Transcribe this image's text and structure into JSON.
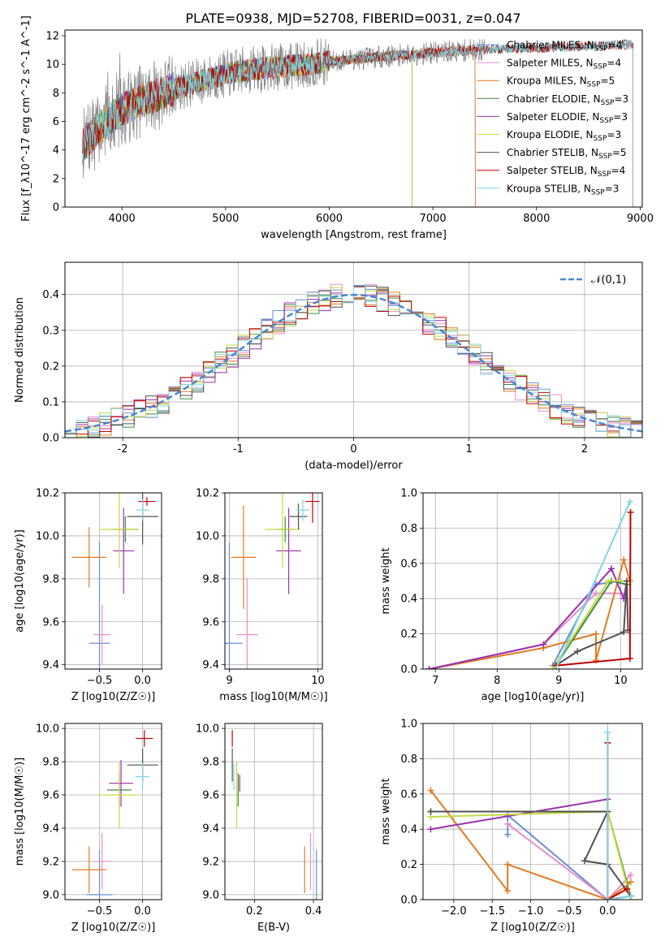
{
  "figure_title": "PLATE=0938, MJD=52708, FIBERID=0031, z=0.047",
  "colors": {
    "Chabrier MILES": "#6a8fd6",
    "Salpeter MILES": "#e58fc8",
    "Kroupa MILES": "#e07b22",
    "Chabrier ELODIE": "#3e8a3e",
    "Salpeter ELODIE": "#9b2fae",
    "Kroupa ELODIE": "#c5d942",
    "Chabrier STELIB": "#505050",
    "Salpeter STELIB": "#c00000",
    "Kroupa STELIB": "#7fd6de",
    "data": "#808080",
    "gaussian": "#4a86d0"
  },
  "chart_data": [
    {
      "id": "spectrum",
      "type": "line",
      "xlabel": "wavelength [Angstrom, rest frame]",
      "ylabel": "Flux [f_λ10^-17 erg cm^-2 s^-1 A^-1]",
      "xlim": [
        3450,
        9020
      ],
      "ylim": [
        0,
        12.4
      ],
      "xticks": [
        4000,
        5000,
        6000,
        7000,
        8000,
        9000
      ],
      "yticks": [
        0,
        2,
        4,
        6,
        8,
        10,
        12
      ],
      "legend_position": "upper right",
      "legend": [
        {
          "model": "Chabrier MILES",
          "nssp": "4"
        },
        {
          "model": "Salpeter MILES",
          "nssp": "4"
        },
        {
          "model": "Kroupa MILES",
          "nssp": "5"
        },
        {
          "model": "Chabrier ELODIE",
          "nssp": "3"
        },
        {
          "model": "Salpeter ELODIE",
          "nssp": "3"
        },
        {
          "model": "Kroupa ELODIE",
          "nssp": "3"
        },
        {
          "model": "Chabrier STELIB",
          "nssp": "5"
        },
        {
          "model": "Salpeter STELIB",
          "nssp": "4"
        },
        {
          "model": "Kroupa STELIB",
          "nssp": "3"
        }
      ],
      "continuum": {
        "x": [
          3620,
          3800,
          4000,
          4200,
          4500,
          4800,
          5000,
          5200,
          5500,
          5800,
          6000,
          6300,
          6600,
          7000,
          7400,
          7800,
          8200,
          8600,
          8900
        ],
        "y": [
          4.3,
          5.6,
          6.8,
          7.5,
          8.3,
          8.9,
          9.3,
          9.6,
          9.8,
          10.0,
          10.2,
          10.4,
          10.6,
          10.8,
          11.0,
          11.1,
          11.2,
          11.3,
          11.4
        ]
      },
      "model_ranges": {
        "Chabrier MILES": [
          3620,
          7410
        ],
        "Salpeter MILES": [
          3620,
          7410
        ],
        "Kroupa MILES": [
          3620,
          7410
        ],
        "Chabrier ELODIE": [
          3620,
          6800
        ],
        "Salpeter ELODIE": [
          3620,
          6800
        ],
        "Kroupa ELODIE": [
          3620,
          6800
        ],
        "Chabrier STELIB": [
          3620,
          8930
        ],
        "Salpeter STELIB": [
          3620,
          8930
        ],
        "Kroupa STELIB": [
          3620,
          8930
        ]
      }
    },
    {
      "id": "residuals",
      "type": "histogram",
      "xlabel": "(data-model)/error",
      "ylabel": "Normed distribution",
      "xlim": [
        -2.5,
        2.5
      ],
      "ylim": [
        0,
        0.49
      ],
      "xticks": [
        -2,
        -1,
        0,
        1,
        2
      ],
      "yticks": [
        0.0,
        0.1,
        0.2,
        0.3,
        0.4
      ],
      "gaussian_label": "𝒩(0,1)",
      "bin_width": 0.1,
      "grid": true
    },
    {
      "id": "age-vs-Z",
      "type": "errorbar",
      "xlabel": "Z [log10(Z/Z☉)]",
      "ylabel": "age [log10(age/yr)]",
      "xlim": [
        -0.9,
        0.22
      ],
      "ylim": [
        9.38,
        10.2
      ],
      "xticks": [
        -0.5,
        0.0
      ],
      "yticks": [
        9.4,
        9.6,
        9.8,
        10.0,
        10.2
      ],
      "points": [
        {
          "model": "Chabrier MILES",
          "x": -0.5,
          "xerr": 0.12,
          "y": 9.5,
          "yerr": 0.47
        },
        {
          "model": "Salpeter MILES",
          "x": -0.47,
          "xerr": 0.1,
          "y": 9.54,
          "yerr": 0.14
        },
        {
          "model": "Kroupa MILES",
          "x": -0.62,
          "xerr": 0.2,
          "y": 9.9,
          "yerr": 0.14
        },
        {
          "model": "Chabrier ELODIE",
          "x": -0.2,
          "xerr": 0.15,
          "y": 10.03,
          "yerr": 0.06
        },
        {
          "model": "Salpeter ELODIE",
          "x": -0.22,
          "xerr": 0.12,
          "y": 9.93,
          "yerr": 0.2
        },
        {
          "model": "Kroupa ELODIE",
          "x": -0.27,
          "xerr": 0.22,
          "y": 10.03,
          "yerr": 0.18
        },
        {
          "model": "Chabrier STELIB",
          "x": 0.0,
          "xerr": 0.18,
          "y": 10.09,
          "yerr": 0.13
        },
        {
          "model": "Salpeter STELIB",
          "x": 0.05,
          "xerr": 0.1,
          "y": 10.16,
          "yerr": 0.02
        },
        {
          "model": "Kroupa STELIB",
          "x": 0.0,
          "xerr": 0.08,
          "y": 10.12,
          "yerr": 0.05
        }
      ]
    },
    {
      "id": "age-vs-mass",
      "type": "errorbar",
      "xlabel": "mass [log10(M/M☉)]",
      "ylabel": "",
      "xlim": [
        8.95,
        10.05
      ],
      "ylim": [
        9.38,
        10.2
      ],
      "xticks": [
        9,
        10
      ],
      "yticks": [
        9.4,
        9.6,
        9.8,
        10.0,
        10.2
      ],
      "points": [
        {
          "model": "Chabrier MILES",
          "x": 9.0,
          "xerr": 0.15,
          "y": 9.5,
          "yerr": 0.47
        },
        {
          "model": "Salpeter MILES",
          "x": 9.2,
          "xerr": 0.12,
          "y": 9.54,
          "yerr": 0.26
        },
        {
          "model": "Kroupa MILES",
          "x": 9.16,
          "xerr": 0.14,
          "y": 9.9,
          "yerr": 0.24
        },
        {
          "model": "Chabrier ELODIE",
          "x": 9.63,
          "xerr": 0.1,
          "y": 10.03,
          "yerr": 0.06
        },
        {
          "model": "Salpeter ELODIE",
          "x": 9.67,
          "xerr": 0.14,
          "y": 9.93,
          "yerr": 0.2
        },
        {
          "model": "Kroupa ELODIE",
          "x": 9.6,
          "xerr": 0.2,
          "y": 10.03,
          "yerr": 0.18
        },
        {
          "model": "Chabrier STELIB",
          "x": 9.78,
          "xerr": 0.1,
          "y": 10.09,
          "yerr": 0.06
        },
        {
          "model": "Salpeter STELIB",
          "x": 9.94,
          "xerr": 0.08,
          "y": 10.16,
          "yerr": 0.1
        },
        {
          "model": "Kroupa STELIB",
          "x": 9.83,
          "xerr": 0.08,
          "y": 10.12,
          "yerr": 0.05
        }
      ]
    },
    {
      "id": "weight-vs-age",
      "type": "line",
      "xlabel": "age [log10(age/yr)]",
      "ylabel": "mass weight",
      "xlim": [
        6.8,
        10.35
      ],
      "ylim": [
        0,
        1.0
      ],
      "xticks": [
        7,
        8,
        9,
        10
      ],
      "yticks": [
        0.0,
        0.2,
        0.4,
        0.6,
        0.8,
        1.0
      ],
      "series": [
        {
          "model": "Chabrier MILES",
          "x": [
            8.9,
            9.6,
            10.0
          ],
          "y": [
            0.02,
            0.48,
            0.5
          ]
        },
        {
          "model": "Salpeter MILES",
          "x": [
            6.9,
            8.75,
            9.6,
            10.0
          ],
          "y": [
            0.0,
            0.14,
            0.43,
            0.43
          ]
        },
        {
          "model": "Kroupa MILES",
          "x": [
            6.9,
            8.75,
            9.6,
            9.6,
            10.05,
            10.15
          ],
          "y": [
            0.0,
            0.12,
            0.2,
            0.05,
            0.62,
            0.5
          ]
        },
        {
          "model": "Chabrier ELODIE",
          "x": [
            8.95,
            9.85,
            10.1
          ],
          "y": [
            0.02,
            0.5,
            0.48
          ]
        },
        {
          "model": "Salpeter ELODIE",
          "x": [
            6.9,
            8.75,
            9.85,
            10.05,
            10.1
          ],
          "y": [
            0.0,
            0.14,
            0.57,
            0.4,
            0.5
          ]
        },
        {
          "model": "Kroupa ELODIE",
          "x": [
            8.9,
            9.8,
            10.1
          ],
          "y": [
            0.0,
            0.5,
            0.5
          ]
        },
        {
          "model": "Chabrier STELIB",
          "x": [
            8.95,
            9.3,
            10.05,
            10.1,
            10.12
          ],
          "y": [
            0.02,
            0.1,
            0.21,
            0.5,
            0.22
          ]
        },
        {
          "model": "Salpeter STELIB",
          "x": [
            8.95,
            10.15,
            10.16
          ],
          "y": [
            0.02,
            0.06,
            0.89
          ]
        },
        {
          "model": "Kroupa STELIB",
          "x": [
            8.95,
            10.15
          ],
          "y": [
            0.0,
            0.95
          ]
        }
      ]
    },
    {
      "id": "mass-vs-Z",
      "type": "errorbar",
      "xlabel": "Z [log10(Z/Z☉)]",
      "ylabel": "mass [log10(M/M☉)]",
      "xlim": [
        -0.9,
        0.22
      ],
      "ylim": [
        8.97,
        10.03
      ],
      "xticks": [
        -0.5,
        0.0
      ],
      "yticks": [
        9.0,
        9.2,
        9.4,
        9.6,
        9.8,
        10.0
      ],
      "points": [
        {
          "model": "Chabrier MILES",
          "x": -0.5,
          "xerr": 0.15,
          "y": 9.0,
          "yerr": 0.27
        },
        {
          "model": "Salpeter MILES",
          "x": -0.47,
          "xerr": 0.1,
          "y": 9.2,
          "yerr": 0.17
        },
        {
          "model": "Kroupa MILES",
          "x": -0.62,
          "xerr": 0.2,
          "y": 9.15,
          "yerr": 0.14
        },
        {
          "model": "Chabrier ELODIE",
          "x": -0.27,
          "xerr": 0.14,
          "y": 9.63,
          "yerr": 0.1
        },
        {
          "model": "Salpeter ELODIE",
          "x": -0.25,
          "xerr": 0.14,
          "y": 9.67,
          "yerr": 0.14
        },
        {
          "model": "Kroupa ELODIE",
          "x": -0.27,
          "xerr": 0.22,
          "y": 9.6,
          "yerr": 0.2
        },
        {
          "model": "Chabrier STELIB",
          "x": 0.0,
          "xerr": 0.18,
          "y": 9.78,
          "yerr": 0.1
        },
        {
          "model": "Salpeter STELIB",
          "x": 0.02,
          "xerr": 0.1,
          "y": 9.94,
          "yerr": 0.05
        },
        {
          "model": "Kroupa STELIB",
          "x": 0.0,
          "xerr": 0.08,
          "y": 9.71,
          "yerr": 0.08
        }
      ]
    },
    {
      "id": "mass-vs-ebv",
      "type": "errorbar",
      "xlabel": "E(B-V)",
      "ylabel": "",
      "xlim": [
        0.1,
        0.43
      ],
      "ylim": [
        8.97,
        10.03
      ],
      "xticks": [
        0.2,
        0.4
      ],
      "yticks": [
        9.0,
        9.2,
        9.4,
        9.6,
        9.8,
        10.0
      ],
      "points": [
        {
          "model": "Chabrier MILES",
          "x": 0.41,
          "xerr": 0.0,
          "y": 9.0,
          "yerr": 0.27
        },
        {
          "model": "Salpeter MILES",
          "x": 0.39,
          "xerr": 0.0,
          "y": 9.2,
          "yerr": 0.17
        },
        {
          "model": "Kroupa MILES",
          "x": 0.37,
          "xerr": 0.0,
          "y": 9.15,
          "yerr": 0.14
        },
        {
          "model": "Chabrier ELODIE",
          "x": 0.145,
          "xerr": 0.0,
          "y": 9.63,
          "yerr": 0.1
        },
        {
          "model": "Salpeter ELODIE",
          "x": 0.15,
          "xerr": 0.0,
          "y": 9.67,
          "yerr": 0.05
        },
        {
          "model": "Kroupa ELODIE",
          "x": 0.14,
          "xerr": 0.0,
          "y": 9.6,
          "yerr": 0.2
        },
        {
          "model": "Chabrier STELIB",
          "x": 0.125,
          "xerr": 0.0,
          "y": 9.78,
          "yerr": 0.1
        },
        {
          "model": "Salpeter STELIB",
          "x": 0.125,
          "xerr": 0.0,
          "y": 9.94,
          "yerr": 0.05
        },
        {
          "model": "Kroupa STELIB",
          "x": 0.13,
          "xerr": 0.0,
          "y": 9.71,
          "yerr": 0.08
        }
      ]
    },
    {
      "id": "weight-vs-Z",
      "type": "line",
      "xlabel": "Z [log10(Z/Z☉)]",
      "ylabel": "mass weight",
      "xlim": [
        -2.4,
        0.45
      ],
      "ylim": [
        0,
        1.0
      ],
      "xticks": [
        -2.0,
        -1.5,
        -1.0,
        -0.5,
        0.0
      ],
      "yticks": [
        0.0,
        0.2,
        0.4,
        0.6,
        0.8,
        1.0
      ],
      "series": [
        {
          "model": "Chabrier MILES",
          "x": [
            -1.3,
            -1.3,
            0.0,
            0.3
          ],
          "y": [
            0.37,
            0.48,
            0.0,
            0.02
          ]
        },
        {
          "model": "Salpeter MILES",
          "x": [
            -1.3,
            -1.3,
            0.0,
            0.3
          ],
          "y": [
            0.43,
            0.43,
            0.0,
            0.14
          ]
        },
        {
          "model": "Kroupa MILES",
          "x": [
            -2.3,
            -1.3,
            -1.3,
            0.0,
            0.3
          ],
          "y": [
            0.62,
            0.05,
            0.2,
            0.0,
            0.1
          ]
        },
        {
          "model": "Chabrier ELODIE",
          "x": [
            -2.3,
            0.0,
            0.3
          ],
          "y": [
            0.5,
            0.5,
            0.02
          ]
        },
        {
          "model": "Salpeter ELODIE",
          "x": [
            -2.3,
            0.0,
            0.0,
            0.3
          ],
          "y": [
            0.4,
            0.57,
            0.0,
            0.02
          ]
        },
        {
          "model": "Kroupa ELODIE",
          "x": [
            -2.3,
            0.0,
            0.3
          ],
          "y": [
            0.47,
            0.5,
            0.0
          ]
        },
        {
          "model": "Chabrier STELIB",
          "x": [
            -2.3,
            0.0,
            -0.3,
            0.0,
            0.3
          ],
          "y": [
            0.5,
            0.5,
            0.22,
            0.2,
            0.02
          ]
        },
        {
          "model": "Salpeter STELIB",
          "x": [
            0.0,
            0.0,
            0.25
          ],
          "y": [
            0.89,
            0.0,
            0.06
          ]
        },
        {
          "model": "Kroupa STELIB",
          "x": [
            0.0,
            0.0,
            0.3
          ],
          "y": [
            0.95,
            0.0,
            0.02
          ]
        }
      ]
    }
  ]
}
